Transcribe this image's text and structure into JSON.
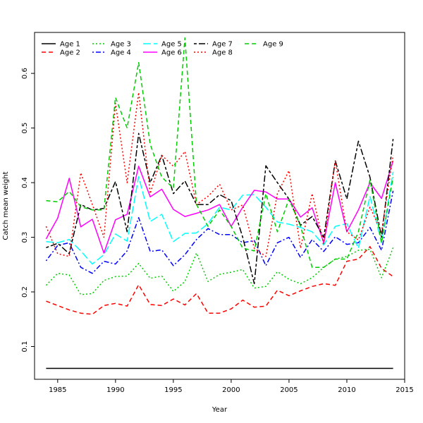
{
  "chart_data": {
    "type": "line",
    "xlabel": "Year",
    "ylabel": "Catch mean weight",
    "xlim": [
      1983,
      2015
    ],
    "ylim": [
      0.04,
      0.675
    ],
    "xticks": [
      1985,
      1990,
      1995,
      2000,
      2005,
      2010,
      2015
    ],
    "yticks": [
      0.1,
      0.2,
      0.3,
      0.4,
      0.5,
      0.6
    ],
    "legend": "top-left",
    "x": [
      1984,
      1985,
      1986,
      1987,
      1988,
      1989,
      1990,
      1991,
      1992,
      1993,
      1994,
      1995,
      1996,
      1997,
      1998,
      1999,
      2000,
      2001,
      2002,
      2003,
      2004,
      2005,
      2006,
      2007,
      2008,
      2009,
      2010,
      2011,
      2012,
      2013,
      2014
    ],
    "series": [
      {
        "name": "Age 1",
        "color": "#000000",
        "dash": "solid",
        "values": [
          0.06,
          0.06,
          0.06,
          0.06,
          0.06,
          0.06,
          0.06,
          0.06,
          0.06,
          0.06,
          0.06,
          0.06,
          0.06,
          0.06,
          0.06,
          0.06,
          0.06,
          0.06,
          0.06,
          0.06,
          0.06,
          0.06,
          0.06,
          0.06,
          0.06,
          0.06,
          0.06,
          0.06,
          0.06,
          0.06,
          0.06
        ]
      },
      {
        "name": "Age 2",
        "color": "#ff0000",
        "dash": "dashed",
        "values": [
          0.183,
          0.175,
          0.167,
          0.161,
          0.159,
          0.175,
          0.179,
          0.174,
          0.213,
          0.177,
          0.175,
          0.187,
          0.176,
          0.197,
          0.161,
          0.161,
          0.169,
          0.185,
          0.172,
          0.174,
          0.203,
          0.193,
          0.202,
          0.21,
          0.215,
          0.212,
          0.256,
          0.26,
          0.283,
          0.243,
          0.228
        ]
      },
      {
        "name": "Age 3",
        "color": "#00cd00",
        "dash": "dotted",
        "values": [
          0.212,
          0.234,
          0.231,
          0.195,
          0.197,
          0.221,
          0.228,
          0.229,
          0.252,
          0.225,
          0.229,
          0.201,
          0.219,
          0.271,
          0.219,
          0.232,
          0.236,
          0.241,
          0.207,
          0.21,
          0.237,
          0.223,
          0.215,
          0.226,
          0.245,
          0.26,
          0.265,
          0.276,
          0.278,
          0.226,
          0.281
        ]
      },
      {
        "name": "Age 4",
        "color": "#0000ff",
        "dash": "dotdash",
        "values": [
          0.257,
          0.285,
          0.29,
          0.245,
          0.234,
          0.256,
          0.251,
          0.275,
          0.336,
          0.274,
          0.277,
          0.248,
          0.268,
          0.296,
          0.316,
          0.305,
          0.305,
          0.29,
          0.294,
          0.248,
          0.29,
          0.3,
          0.263,
          0.296,
          0.274,
          0.301,
          0.287,
          0.29,
          0.318,
          0.276,
          0.385
        ]
      },
      {
        "name": "Age 5",
        "color": "#00ffff",
        "dash": "longdash",
        "values": [
          0.292,
          0.29,
          0.296,
          0.275,
          0.251,
          0.268,
          0.306,
          0.293,
          0.411,
          0.329,
          0.342,
          0.292,
          0.307,
          0.308,
          0.325,
          0.355,
          0.35,
          0.377,
          0.378,
          0.355,
          0.328,
          0.324,
          0.318,
          0.31,
          0.286,
          0.32,
          0.325,
          0.28,
          0.375,
          0.29,
          0.42
        ]
      },
      {
        "name": "Age 6",
        "color": "#ff00ff",
        "dash": "solid",
        "values": [
          0.297,
          0.335,
          0.408,
          0.319,
          0.333,
          0.271,
          0.332,
          0.342,
          0.43,
          0.374,
          0.388,
          0.351,
          0.338,
          0.344,
          0.35,
          0.36,
          0.32,
          0.355,
          0.386,
          0.383,
          0.37,
          0.37,
          0.337,
          0.354,
          0.29,
          0.4,
          0.31,
          0.35,
          0.4,
          0.371,
          0.44
        ]
      },
      {
        "name": "Age 7",
        "color": "#000000",
        "dash": "twodash",
        "values": [
          0.281,
          0.289,
          0.27,
          0.36,
          0.35,
          0.353,
          0.402,
          0.31,
          0.49,
          0.4,
          0.45,
          0.38,
          0.403,
          0.36,
          0.36,
          0.378,
          0.367,
          0.3,
          0.215,
          0.431,
          0.4,
          0.37,
          0.322,
          0.338,
          0.3,
          0.44,
          0.37,
          0.476,
          0.41,
          0.3,
          0.48
        ]
      },
      {
        "name": "Age 8",
        "color": "#ff0000",
        "dash": "dotted",
        "values": [
          0.32,
          0.27,
          0.265,
          0.418,
          0.36,
          0.3,
          0.545,
          0.4,
          0.565,
          0.38,
          0.45,
          0.43,
          0.457,
          0.36,
          0.375,
          0.397,
          0.35,
          0.359,
          0.28,
          0.265,
          0.38,
          0.422,
          0.28,
          0.38,
          0.288,
          0.44,
          0.31,
          0.295,
          0.355,
          0.31,
          0.45
        ]
      },
      {
        "name": "Age 9",
        "color": "#00cd00",
        "dash": "dashed",
        "values": [
          0.367,
          0.365,
          0.384,
          0.356,
          0.35,
          0.35,
          0.556,
          0.5,
          0.62,
          0.47,
          0.41,
          0.39,
          0.665,
          0.36,
          0.32,
          0.35,
          0.32,
          0.28,
          0.275,
          0.38,
          0.31,
          0.37,
          0.32,
          0.245,
          0.245,
          0.26,
          0.26,
          0.31,
          0.405,
          0.29,
          0.41
        ]
      }
    ]
  }
}
